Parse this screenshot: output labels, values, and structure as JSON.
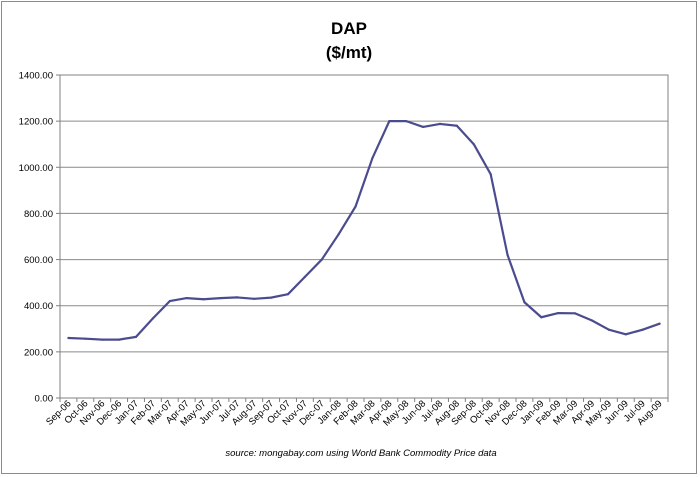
{
  "chart_data": {
    "type": "line",
    "title": "DAP",
    "subtitle": "($/mt)",
    "source": "source: mongabay.com using World Bank Commodity Price data",
    "ylim": [
      0,
      1400
    ],
    "yticks": [
      "0.00",
      "200.00",
      "400.00",
      "600.00",
      "800.00",
      "1000.00",
      "1200.00",
      "1400.00"
    ],
    "grid": true,
    "line_color": "#4b4b8f",
    "categories": [
      "Sep-06",
      "Oct-06",
      "Nov-06",
      "Dec-06",
      "Jan-07",
      "Feb-07",
      "Mar-07",
      "Apr-07",
      "May-07",
      "Jun-07",
      "Jul-07",
      "Aug-07",
      "Sep-07",
      "Oct-07",
      "Nov-07",
      "Dec-07",
      "Jan-08",
      "Feb-08",
      "Mar-08",
      "Apr-08",
      "May-08",
      "Jun-08",
      "Jul-08",
      "Aug-08",
      "Sep-08",
      "Oct-08",
      "Nov-08",
      "Dec-08",
      "Jan-09",
      "Feb-09",
      "Mar-09",
      "Apr-09",
      "May-09",
      "Jun-09",
      "Jul-09",
      "Aug-09"
    ],
    "series": [
      {
        "values": [
          260,
          257,
          253,
          253,
          265,
          345,
          420,
          433,
          428,
          433,
          436,
          430,
          435,
          450,
          525,
          600,
          710,
          830,
          1040,
          1200,
          1200,
          1175,
          1188,
          1180,
          1100,
          970,
          620,
          415,
          350,
          368,
          367,
          336,
          296,
          276,
          296,
          322
        ]
      }
    ]
  }
}
